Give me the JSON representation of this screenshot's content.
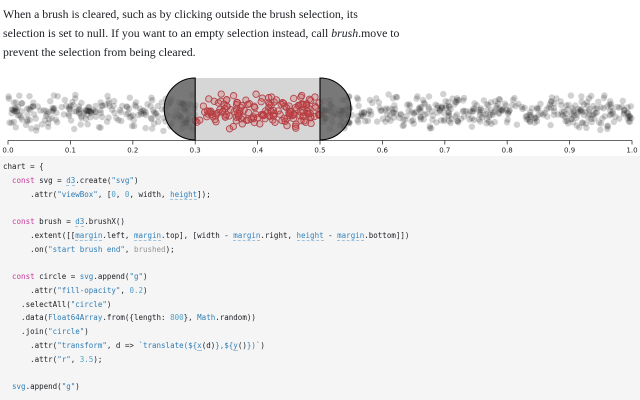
{
  "intro": {
    "line1": "When a brush is cleared, such as by clicking outside the brush selection, its",
    "line2_pre": "selection is set to null. If you want to an empty selection instead, call ",
    "line2_italic": "brush",
    "line2_post": ".move to",
    "line3": "prevent the selection from being cleared."
  },
  "chart_data": {
    "type": "scatter",
    "title": "",
    "xlabel": "",
    "ylabel": "",
    "x_domain": [
      0,
      1
    ],
    "x_ticks": [
      "0.0",
      "0.1",
      "0.2",
      "0.3",
      "0.4",
      "0.5",
      "0.6",
      "0.7",
      "0.8",
      "0.9",
      "1.0"
    ],
    "point_count": 800,
    "point_radius": 3.5,
    "points_note": "800 uniform-random x values in [0,1] (Math.random data) with random vertical jitter; points inside the brush extent are highlighted red",
    "brush_selection": {
      "x0": 0.3,
      "x1": 0.5
    },
    "legend": "none",
    "grid": false,
    "colors": {
      "point_fill": "#000000",
      "point_fill_opacity": 0.18,
      "selected_stroke": "#c7262e",
      "selected_fill": "#ff2a2a",
      "selected_fill_opacity": 0.22,
      "selection_fill": "rgba(119,119,119,0.3)",
      "handle_fill": "#5a5a5a",
      "handle_stroke": "#000000",
      "axis": "#333333",
      "tick_label": "#222222"
    }
  },
  "code": {
    "language": "javascript",
    "lines": [
      [
        [
          "t",
          "chart = {"
        ]
      ],
      [
        [
          "t",
          "  "
        ],
        [
          "k",
          "const"
        ],
        [
          "t",
          " svg = "
        ],
        [
          "r",
          "d3"
        ],
        [
          "t",
          ".create("
        ],
        [
          "s",
          "\"svg\""
        ],
        [
          "t",
          ")"
        ]
      ],
      [
        [
          "t",
          "      .attr("
        ],
        [
          "s",
          "\"viewBox\""
        ],
        [
          "t",
          ", ["
        ],
        [
          "n",
          "0"
        ],
        [
          "t",
          ", "
        ],
        [
          "n",
          "0"
        ],
        [
          "t",
          ", width, "
        ],
        [
          "r",
          "height"
        ],
        [
          "t",
          "]);"
        ]
      ],
      [],
      [
        [
          "t",
          "  "
        ],
        [
          "k",
          "const"
        ],
        [
          "t",
          " brush = "
        ],
        [
          "r",
          "d3"
        ],
        [
          "t",
          ".brushX()"
        ]
      ],
      [
        [
          "t",
          "      .extent([["
        ],
        [
          "r",
          "margin"
        ],
        [
          "t",
          ".left, "
        ],
        [
          "r",
          "margin"
        ],
        [
          "t",
          ".top], [width - "
        ],
        [
          "r",
          "margin"
        ],
        [
          "t",
          ".right, "
        ],
        [
          "r",
          "height"
        ],
        [
          "t",
          " - "
        ],
        [
          "r",
          "margin"
        ],
        [
          "t",
          ".bottom]])"
        ]
      ],
      [
        [
          "t",
          "      .on("
        ],
        [
          "s",
          "\"start brush end\""
        ],
        [
          "t",
          ", "
        ],
        [
          "u",
          "brushed"
        ],
        [
          "t",
          ");"
        ]
      ],
      [],
      [
        [
          "t",
          "  "
        ],
        [
          "k",
          "const"
        ],
        [
          "t",
          " circle = "
        ],
        [
          "g",
          "svg"
        ],
        [
          "t",
          ".append("
        ],
        [
          "s",
          "\"g\""
        ],
        [
          "t",
          ")"
        ]
      ],
      [
        [
          "t",
          "      .attr("
        ],
        [
          "s",
          "\"fill-opacity\""
        ],
        [
          "t",
          ", "
        ],
        [
          "n",
          "0.2"
        ],
        [
          "t",
          ")"
        ]
      ],
      [
        [
          "t",
          "    .selectAll("
        ],
        [
          "s",
          "\"circle\""
        ],
        [
          "t",
          ")"
        ]
      ],
      [
        [
          "t",
          "    .data("
        ],
        [
          "g",
          "Float64Array"
        ],
        [
          "t",
          ".from({length: "
        ],
        [
          "n",
          "800"
        ],
        [
          "t",
          "}, "
        ],
        [
          "g",
          "Math"
        ],
        [
          "t",
          ".random))"
        ]
      ],
      [
        [
          "t",
          "    .join("
        ],
        [
          "s",
          "\"circle\""
        ],
        [
          "t",
          ")"
        ]
      ],
      [
        [
          "t",
          "      .attr("
        ],
        [
          "s",
          "\"transform\""
        ],
        [
          "t",
          ", d => "
        ],
        [
          "s",
          "`translate(${"
        ],
        [
          "r",
          "x"
        ],
        [
          "t",
          "(d)"
        ],
        [
          "s",
          "},${"
        ],
        [
          "r",
          "y"
        ],
        [
          "t",
          "()"
        ],
        [
          "s",
          "})`"
        ],
        [
          "t",
          ")"
        ]
      ],
      [
        [
          "t",
          "      .attr("
        ],
        [
          "s",
          "\"r\""
        ],
        [
          "t",
          ", "
        ],
        [
          "n",
          "3.5"
        ],
        [
          "t",
          ");"
        ]
      ],
      [],
      [
        [
          "t",
          "  "
        ],
        [
          "g",
          "svg"
        ],
        [
          "t",
          ".append("
        ],
        [
          "s",
          "\"g\""
        ],
        [
          "t",
          ")"
        ]
      ]
    ]
  }
}
